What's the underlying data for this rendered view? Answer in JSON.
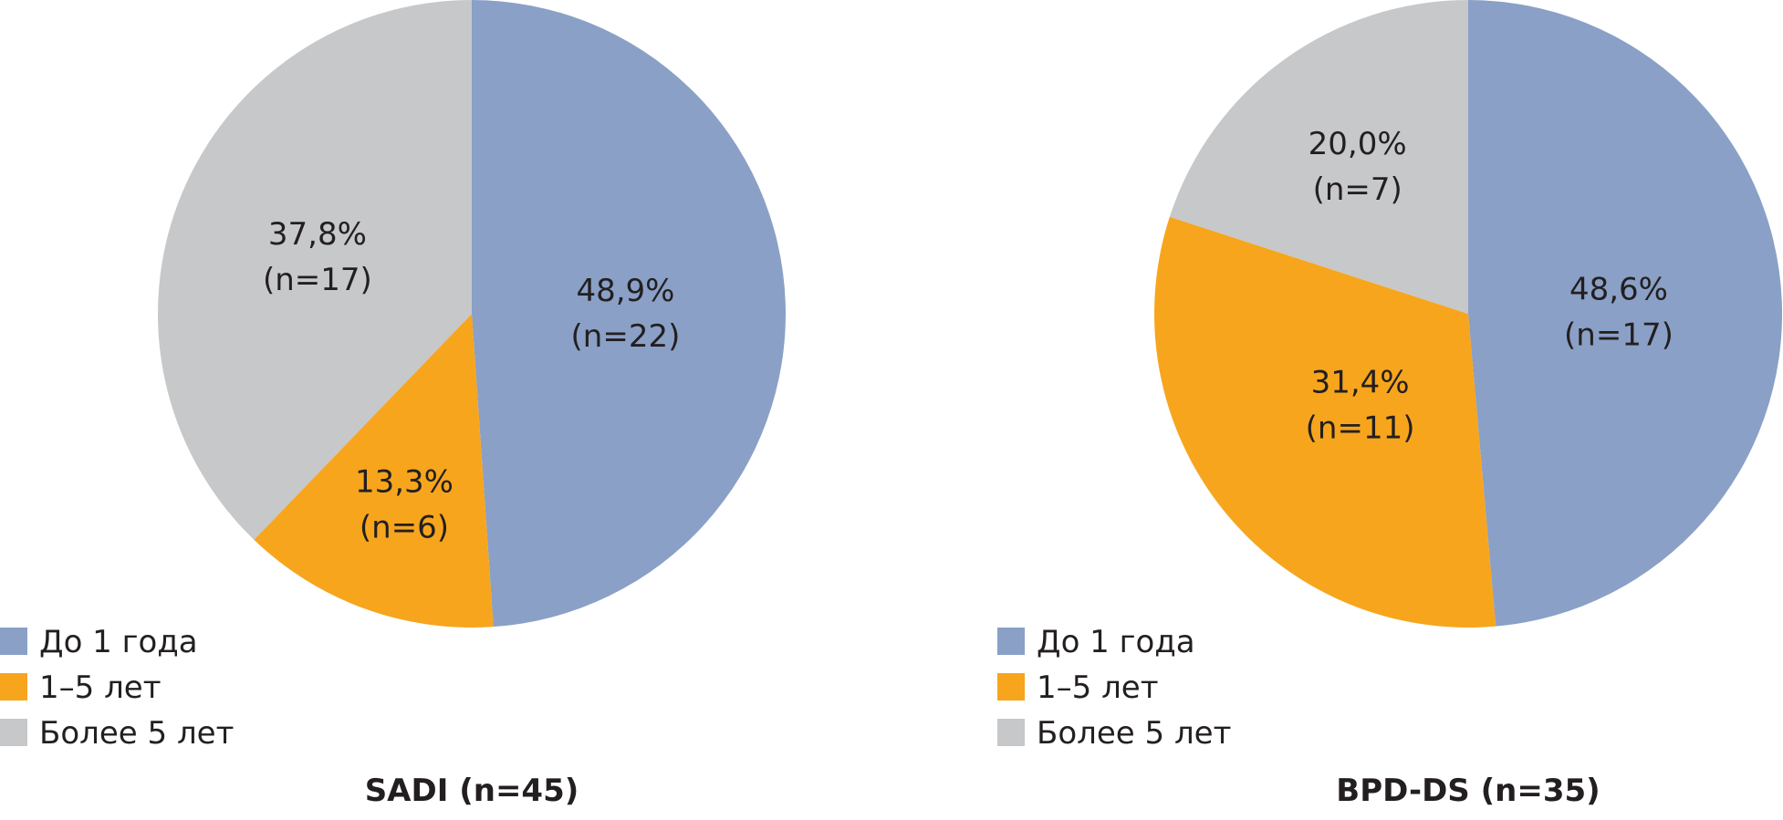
{
  "chart_data": [
    {
      "type": "pie",
      "title": "SADI (n=45)",
      "legend_position": "bottom-left",
      "slices": [
        {
          "name": "До 1 года",
          "value": 48.9,
          "label_pct": "48,9%",
          "label_n": "(n=22)",
          "color": "#8aa0c6"
        },
        {
          "name": "1–5 лет",
          "value": 13.3,
          "label_pct": "13,3%",
          "label_n": "(n=6)",
          "color": "#f7a51d"
        },
        {
          "name": "Более 5 лет",
          "value": 37.8,
          "label_pct": "37,8%",
          "label_n": "(n=17)",
          "color": "#c6c8ca"
        }
      ]
    },
    {
      "type": "pie",
      "title": "BPD-DS (n=35)",
      "legend_position": "bottom-left",
      "slices": [
        {
          "name": "До 1 года",
          "value": 48.6,
          "label_pct": "48,6%",
          "label_n": "(n=17)",
          "color": "#8aa0c6"
        },
        {
          "name": "1–5 лет",
          "value": 31.4,
          "label_pct": "31,4%",
          "label_n": "(n=11)",
          "color": "#f7a51d"
        },
        {
          "name": "Более 5 лет",
          "value": 20.0,
          "label_pct": "20,0%",
          "label_n": "(n=7)",
          "color": "#c6c8ca"
        }
      ]
    }
  ]
}
